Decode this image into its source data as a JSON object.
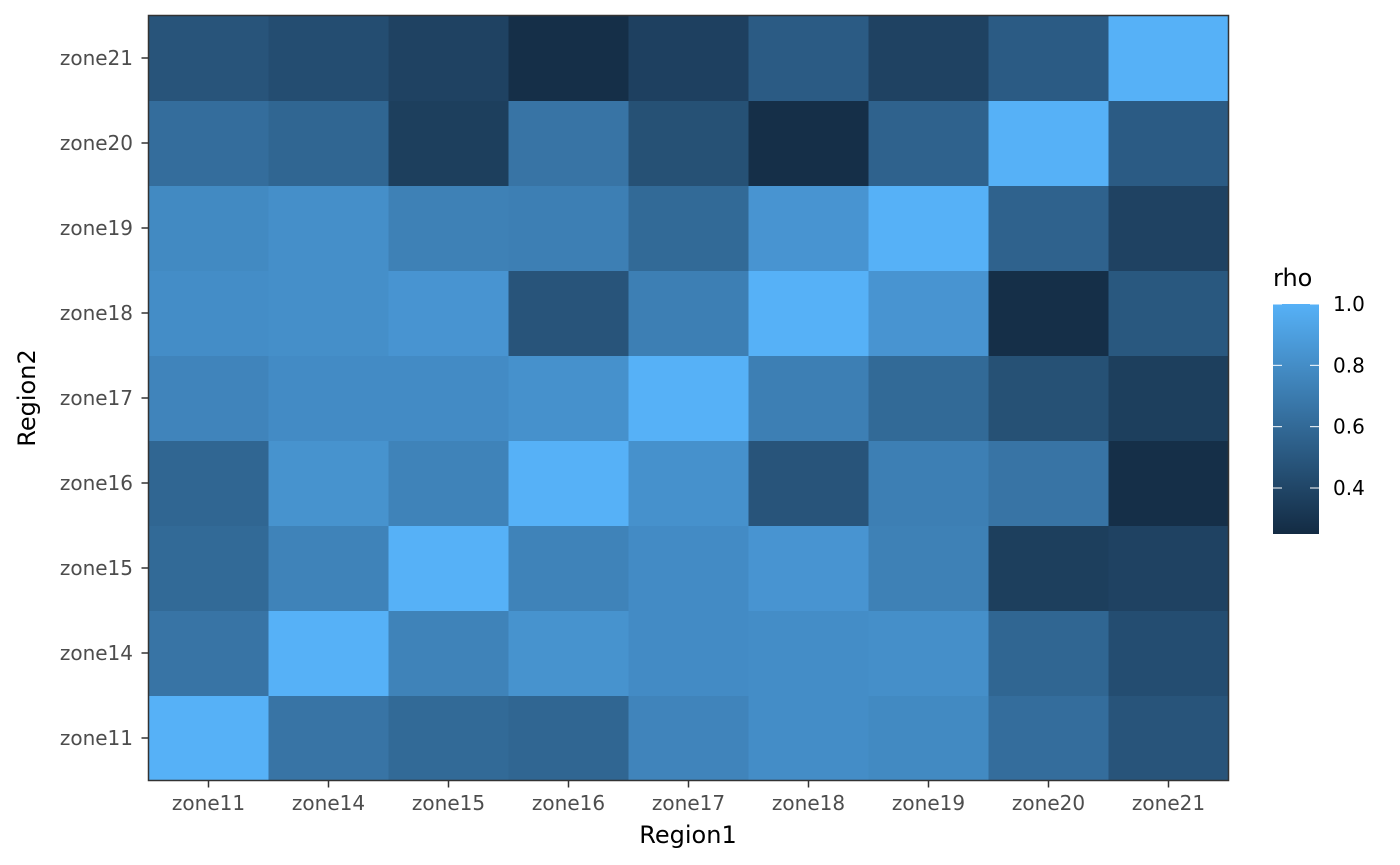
{
  "chart_data": {
    "type": "heatmap",
    "title": "",
    "xlabel": "Region1",
    "ylabel": "Region2",
    "x_categories": [
      "zone11",
      "zone14",
      "zone15",
      "zone16",
      "zone17",
      "zone18",
      "zone19",
      "zone20",
      "zone21"
    ],
    "y_categories": [
      "zone11",
      "zone14",
      "zone15",
      "zone16",
      "zone17",
      "zone18",
      "zone19",
      "zone20",
      "zone21"
    ],
    "values": [
      [
        1.0,
        0.66,
        0.6,
        0.58,
        0.75,
        0.8,
        0.78,
        0.62,
        0.48
      ],
      [
        0.66,
        1.0,
        0.74,
        0.83,
        0.79,
        0.8,
        0.81,
        0.58,
        0.44
      ],
      [
        0.6,
        0.74,
        1.0,
        0.74,
        0.79,
        0.84,
        0.73,
        0.36,
        0.38
      ],
      [
        0.58,
        0.83,
        0.74,
        1.0,
        0.82,
        0.48,
        0.72,
        0.66,
        0.27
      ],
      [
        0.75,
        0.79,
        0.79,
        0.82,
        1.0,
        0.72,
        0.6,
        0.46,
        0.36
      ],
      [
        0.8,
        0.81,
        0.84,
        0.48,
        0.72,
        1.0,
        0.84,
        0.27,
        0.5
      ],
      [
        0.78,
        0.81,
        0.73,
        0.72,
        0.6,
        0.84,
        1.0,
        0.56,
        0.38
      ],
      [
        0.62,
        0.58,
        0.36,
        0.66,
        0.46,
        0.27,
        0.56,
        1.0,
        0.52
      ],
      [
        0.48,
        0.44,
        0.38,
        0.27,
        0.37,
        0.52,
        0.38,
        0.52,
        1.0
      ]
    ],
    "value_range": [
      0.25,
      1.0
    ],
    "color_scale": {
      "low": "#132B43",
      "high": "#56B1F7"
    },
    "legend": {
      "title": "rho",
      "placement": "right",
      "ticks": [
        0.4,
        0.6,
        0.8,
        1.0
      ],
      "tick_labels": [
        "0.4",
        "0.6",
        "0.8",
        "1.0"
      ]
    },
    "grid": false
  }
}
